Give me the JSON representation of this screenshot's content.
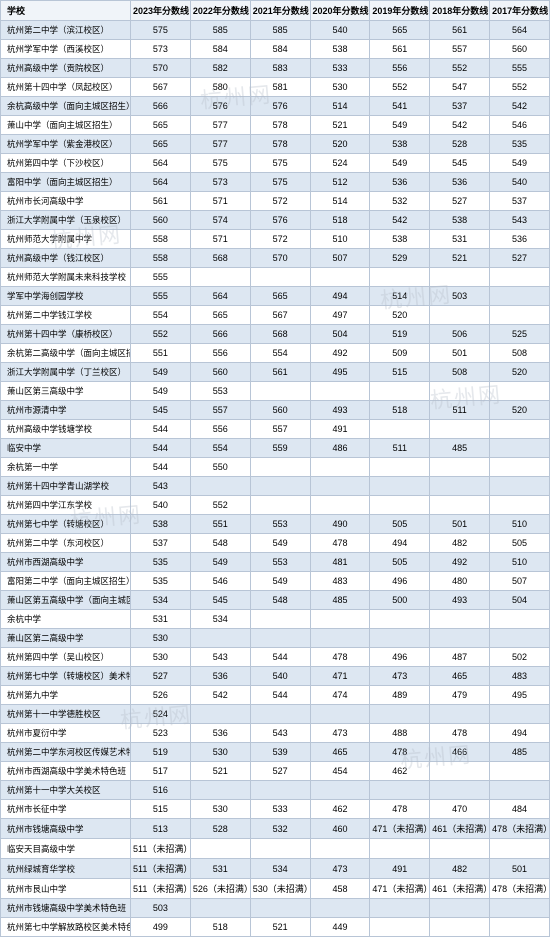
{
  "colors": {
    "border": "#b8c5d6",
    "header_bg": "#f0f4f9",
    "row_alt_bg": "#dde7f2",
    "row_bg": "#ffffff",
    "text": "#000000"
  },
  "fonts": {
    "family": "Microsoft YaHei",
    "header_size": 9,
    "cell_size": 9
  },
  "columns": [
    "学校",
    "2023年分数线",
    "2022年分数线",
    "2021年分数线",
    "2020年分数线",
    "2019年分数线",
    "2018年分数线",
    "2017年分数线"
  ],
  "rows": [
    {
      "school": "杭州第二中学（滨江校区）",
      "scores": [
        "575",
        "585",
        "585",
        "540",
        "565",
        "561",
        "564"
      ]
    },
    {
      "school": "杭州学军中学（西溪校区）",
      "scores": [
        "573",
        "584",
        "584",
        "538",
        "561",
        "557",
        "560"
      ]
    },
    {
      "school": "杭州高级中学（贡院校区）",
      "scores": [
        "570",
        "582",
        "583",
        "533",
        "556",
        "552",
        "555"
      ]
    },
    {
      "school": "杭州第十四中学（凤起校区）",
      "scores": [
        "567",
        "580",
        "581",
        "530",
        "552",
        "547",
        "552"
      ]
    },
    {
      "school": "余杭高级中学（面向主城区招生）",
      "scores": [
        "566",
        "576",
        "576",
        "514",
        "541",
        "537",
        "542"
      ]
    },
    {
      "school": "萧山中学（面向主城区招生）",
      "scores": [
        "565",
        "577",
        "578",
        "521",
        "549",
        "542",
        "546"
      ]
    },
    {
      "school": "杭州学军中学（紫金港校区）",
      "scores": [
        "565",
        "577",
        "578",
        "520",
        "538",
        "528",
        "535"
      ]
    },
    {
      "school": "杭州第四中学（下沙校区）",
      "scores": [
        "564",
        "575",
        "575",
        "524",
        "549",
        "545",
        "549"
      ]
    },
    {
      "school": "富阳中学（面向主城区招生）",
      "scores": [
        "564",
        "573",
        "575",
        "512",
        "536",
        "536",
        "540"
      ]
    },
    {
      "school": "杭州市长河高级中学",
      "scores": [
        "561",
        "571",
        "572",
        "514",
        "532",
        "527",
        "537"
      ]
    },
    {
      "school": "浙江大学附属中学（玉泉校区）",
      "scores": [
        "560",
        "574",
        "576",
        "518",
        "542",
        "538",
        "543"
      ]
    },
    {
      "school": "杭州师范大学附属中学",
      "scores": [
        "558",
        "571",
        "572",
        "510",
        "538",
        "531",
        "536"
      ]
    },
    {
      "school": "杭州高级中学（钱江校区）",
      "scores": [
        "558",
        "568",
        "570",
        "507",
        "529",
        "521",
        "527"
      ]
    },
    {
      "school": "杭州师范大学附属未来科技学校",
      "scores": [
        "555",
        "",
        "",
        "",
        "",
        "",
        ""
      ]
    },
    {
      "school": "学军中学海创园学校",
      "scores": [
        "555",
        "564",
        "565",
        "494",
        "514",
        "503",
        ""
      ]
    },
    {
      "school": "杭州第二中学钱江学校",
      "scores": [
        "554",
        "565",
        "567",
        "497",
        "520",
        "",
        ""
      ]
    },
    {
      "school": "杭州第十四中学（康桥校区）",
      "scores": [
        "552",
        "566",
        "568",
        "504",
        "519",
        "506",
        "525"
      ]
    },
    {
      "school": "余杭第二高级中学（面向主城区招生）",
      "scores": [
        "551",
        "556",
        "554",
        "492",
        "509",
        "501",
        "508"
      ]
    },
    {
      "school": "浙江大学附属中学（丁兰校区）",
      "scores": [
        "549",
        "560",
        "561",
        "495",
        "515",
        "508",
        "520"
      ]
    },
    {
      "school": "萧山区第三高级中学",
      "scores": [
        "549",
        "553",
        "",
        "",
        "",
        "",
        ""
      ]
    },
    {
      "school": "杭州市源清中学",
      "scores": [
        "545",
        "557",
        "560",
        "493",
        "518",
        "511",
        "520"
      ]
    },
    {
      "school": "杭州高级中学钱塘学校",
      "scores": [
        "544",
        "556",
        "557",
        "491",
        "",
        "",
        ""
      ]
    },
    {
      "school": "临安中学",
      "scores": [
        "544",
        "554",
        "559",
        "486",
        "511",
        "485",
        ""
      ]
    },
    {
      "school": "余杭第一中学",
      "scores": [
        "544",
        "550",
        "",
        "",
        "",
        "",
        ""
      ]
    },
    {
      "school": "杭州第十四中学青山湖学校",
      "scores": [
        "543",
        "",
        "",
        "",
        "",
        "",
        ""
      ]
    },
    {
      "school": "杭州第四中学江东学校",
      "scores": [
        "540",
        "552",
        "",
        "",
        "",
        "",
        ""
      ]
    },
    {
      "school": "杭州第七中学（转塘校区）",
      "scores": [
        "538",
        "551",
        "553",
        "490",
        "505",
        "501",
        "510"
      ]
    },
    {
      "school": "杭州第二中学（东河校区）",
      "scores": [
        "537",
        "548",
        "549",
        "478",
        "494",
        "482",
        "505"
      ]
    },
    {
      "school": "杭州市西湖高级中学",
      "scores": [
        "535",
        "549",
        "553",
        "481",
        "505",
        "492",
        "510"
      ]
    },
    {
      "school": "富阳第二中学（面向主城区招生）",
      "scores": [
        "535",
        "546",
        "549",
        "483",
        "496",
        "480",
        "507"
      ]
    },
    {
      "school": "萧山区第五高级中学（面向主城区招生）",
      "scores": [
        "534",
        "545",
        "548",
        "485",
        "500",
        "493",
        "504"
      ]
    },
    {
      "school": "余杭中学",
      "scores": [
        "531",
        "534",
        "",
        "",
        "",
        "",
        ""
      ]
    },
    {
      "school": "萧山区第二高级中学",
      "scores": [
        "530",
        "",
        "",
        "",
        "",
        "",
        ""
      ]
    },
    {
      "school": "杭州第四中学（吴山校区）",
      "scores": [
        "530",
        "543",
        "544",
        "478",
        "496",
        "487",
        "502"
      ]
    },
    {
      "school": "杭州第七中学（转塘校区）美术特色班",
      "scores": [
        "527",
        "536",
        "540",
        "471",
        "473",
        "465",
        "483"
      ]
    },
    {
      "school": "杭州第九中学",
      "scores": [
        "526",
        "542",
        "544",
        "474",
        "489",
        "479",
        "495"
      ]
    },
    {
      "school": "杭州第十一中学德胜校区",
      "scores": [
        "524",
        "",
        "",
        "",
        "",
        "",
        ""
      ]
    },
    {
      "school": "杭州市夏衍中学",
      "scores": [
        "523",
        "536",
        "543",
        "473",
        "488",
        "478",
        "494"
      ]
    },
    {
      "school": "杭州第二中学东河校区传媒艺术特色班",
      "scores": [
        "519",
        "530",
        "539",
        "465",
        "478",
        "466",
        "485"
      ]
    },
    {
      "school": "杭州市西湖高级中学美术特色班",
      "scores": [
        "517",
        "521",
        "527",
        "454",
        "462",
        "",
        ""
      ]
    },
    {
      "school": "杭州第十一中学大关校区",
      "scores": [
        "516",
        "",
        "",
        "",
        "",
        "",
        ""
      ]
    },
    {
      "school": "杭州市长征中学",
      "scores": [
        "515",
        "530",
        "533",
        "462",
        "478",
        "470",
        "484"
      ]
    },
    {
      "school": "杭州市钱塘高级中学",
      "scores": [
        "513",
        "528",
        "532",
        "460",
        "471（未招满）",
        "461（未招满）",
        "478（未招满）"
      ]
    },
    {
      "school": "临安天目高级中学",
      "scores": [
        "511（未招满）",
        "",
        "",
        "",
        "",
        "",
        ""
      ]
    },
    {
      "school": "杭州绿城育华学校",
      "scores": [
        "511（未招满）",
        "531",
        "534",
        "473",
        "491",
        "482",
        "501"
      ]
    },
    {
      "school": "杭州市艮山中学",
      "scores": [
        "511（未招满）",
        "526（未招满）",
        "530（未招满）",
        "458",
        "471（未招满）",
        "461（未招满）",
        "478（未招满）"
      ]
    },
    {
      "school": "杭州市钱塘高级中学美术特色班",
      "scores": [
        "503",
        "",
        "",
        "",
        "",
        "",
        ""
      ]
    },
    {
      "school": "杭州第七中学解放路校区美术特色班",
      "scores": [
        "499",
        "518",
        "521",
        "449",
        "",
        "",
        ""
      ]
    }
  ],
  "watermark_text": "杭州网"
}
